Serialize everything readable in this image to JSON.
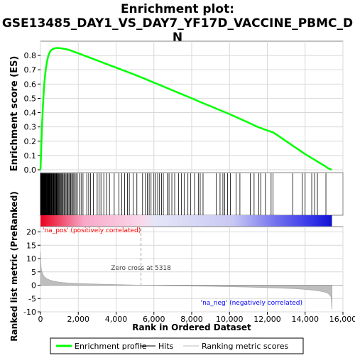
{
  "chart_data": {
    "type": "line",
    "title": "Enrichment plot:\nGSE13485_DAY1_VS_DAY7_YF17D_VACCINE_PBMC_D\nN",
    "es_panel": {
      "ylabel": "Enrichment score (ES)",
      "ylim": [
        -0.02,
        0.9
      ],
      "yticks": [
        0.0,
        0.1,
        0.2,
        0.3,
        0.4,
        0.5,
        0.6,
        0.7,
        0.8
      ],
      "series": [
        {
          "name": "Enrichment profile",
          "color": "#00ff00",
          "x": [
            0,
            40,
            80,
            120,
            160,
            200,
            250,
            300,
            350,
            400,
            450,
            500,
            550,
            600,
            700,
            800,
            900,
            1000,
            1200,
            1400,
            1600,
            1800,
            2000,
            2500,
            3000,
            3500,
            4000,
            4500,
            5000,
            5500,
            6000,
            6500,
            7000,
            7500,
            8000,
            8500,
            9000,
            9500,
            10000,
            10500,
            11000,
            11500,
            12000,
            12300,
            12500,
            13000,
            13500,
            14000,
            14500,
            14800,
            15000,
            15200,
            15400
          ],
          "y": [
            0.0,
            0.15,
            0.3,
            0.42,
            0.52,
            0.6,
            0.67,
            0.72,
            0.76,
            0.79,
            0.81,
            0.825,
            0.835,
            0.84,
            0.848,
            0.852,
            0.853,
            0.852,
            0.848,
            0.843,
            0.835,
            0.825,
            0.815,
            0.79,
            0.765,
            0.74,
            0.715,
            0.69,
            0.665,
            0.638,
            0.61,
            0.583,
            0.555,
            0.528,
            0.5,
            0.472,
            0.445,
            0.417,
            0.39,
            0.36,
            0.33,
            0.3,
            0.275,
            0.262,
            0.245,
            0.2,
            0.155,
            0.11,
            0.07,
            0.045,
            0.03,
            0.012,
            0.0
          ]
        }
      ]
    },
    "hits": {
      "name": "Hits",
      "dense_x": [
        5,
        20,
        35,
        50,
        65,
        80,
        95,
        110,
        125,
        140,
        155,
        170,
        185,
        200,
        215,
        230,
        245,
        260,
        275,
        290,
        305,
        320,
        340,
        360,
        380,
        400,
        420,
        440,
        460,
        480,
        500,
        520,
        545,
        570,
        595,
        620,
        650,
        680,
        710,
        740,
        770,
        800,
        830,
        860,
        890,
        920,
        960,
        1000,
        1040,
        1080,
        1120,
        1160,
        1200,
        1250,
        1300,
        1350,
        1400,
        1450,
        1500,
        1550,
        1600,
        1650,
        1700,
        1760,
        1820,
        1880,
        1950,
        2050,
        2150,
        2250
      ],
      "sparse_x": [
        2450,
        2550,
        2650,
        2800,
        3000,
        3100,
        3200,
        3350,
        3500,
        3650,
        3900,
        4150,
        4300,
        4450,
        4600,
        4700,
        4900,
        5100,
        5400,
        5550,
        5650,
        5750,
        5850,
        6000,
        6100,
        6200,
        6300,
        6400,
        6500,
        6700,
        6800,
        6950,
        7100,
        7300,
        7450,
        7600,
        7800,
        7950,
        8150,
        8350,
        8450,
        8600,
        9300,
        9500,
        9650,
        9750,
        9900,
        10050,
        10350,
        10550,
        11100,
        11300,
        11550,
        11650,
        11900,
        12200,
        12300,
        13350,
        13850,
        14000,
        14350,
        14500,
        14650,
        15100
      ]
    },
    "metric_panel": {
      "ylabel": "Ranked list metric (PreRanked)",
      "xlabel": "Rank in Ordered Dataset",
      "ylim": [
        -10,
        22
      ],
      "yticks": [
        -10,
        -5,
        0,
        5,
        10,
        15,
        20
      ],
      "xlim": [
        0,
        16000
      ],
      "xticks": [
        0,
        2000,
        4000,
        6000,
        8000,
        10000,
        12000,
        14000,
        16000
      ],
      "xtick_labels": [
        "0",
        "2,000",
        "4,000",
        "6,000",
        "8,000",
        "10,000",
        "12,000",
        "14,000",
        "16,000"
      ],
      "series": [
        {
          "name": "Ranking metric scores",
          "color": "#bebebe",
          "x": [
            0,
            10,
            30,
            60,
            100,
            150,
            200,
            300,
            400,
            500,
            700,
            1000,
            1500,
            2000,
            3000,
            4000,
            5318,
            7000,
            9000,
            11000,
            12500,
            13500,
            14200,
            14700,
            15000,
            15200,
            15300,
            15380,
            15420
          ],
          "y": [
            12.5,
            9.5,
            7.0,
            5.5,
            4.5,
            3.8,
            3.2,
            2.6,
            2.2,
            1.9,
            1.5,
            1.1,
            0.8,
            0.6,
            0.4,
            0.25,
            0.0,
            -0.2,
            -0.4,
            -0.7,
            -1.0,
            -1.3,
            -1.7,
            -2.1,
            -2.5,
            -3.0,
            -3.6,
            -4.5,
            -9.0
          ]
        }
      ],
      "zero_cross_label": "Zero cross at 5318",
      "zero_cross_x": 5318,
      "pos_label": "'na_pos' (positively correlated)",
      "neg_label": "'na_neg' (negatively correlated)",
      "pos_label_color": "#ff0000",
      "neg_label_color": "#0000ff"
    },
    "colorbar": {
      "n_points": 15420,
      "stops": [
        {
          "x": 0,
          "color": "#e8001e"
        },
        {
          "x": 900,
          "color": "#f04060"
        },
        {
          "x": 2300,
          "color": "#f8a8c8"
        },
        {
          "x": 5318,
          "color": "#fbd8ea"
        },
        {
          "x": 6000,
          "color": "#e6e6f8"
        },
        {
          "x": 10200,
          "color": "#c8c8f4"
        },
        {
          "x": 12500,
          "color": "#7070ee"
        },
        {
          "x": 14500,
          "color": "#3030e8"
        },
        {
          "x": 15420,
          "color": "#1010d0"
        }
      ]
    },
    "legend": {
      "items": [
        {
          "label": "Enrichment profile",
          "color": "#00ff00",
          "style": "line-thick"
        },
        {
          "label": "Hits",
          "color": "#000000",
          "style": "line-thin"
        },
        {
          "label": "Ranking metric scores",
          "color": "#bebebe",
          "style": "line-thin"
        }
      ]
    },
    "grid": true
  }
}
